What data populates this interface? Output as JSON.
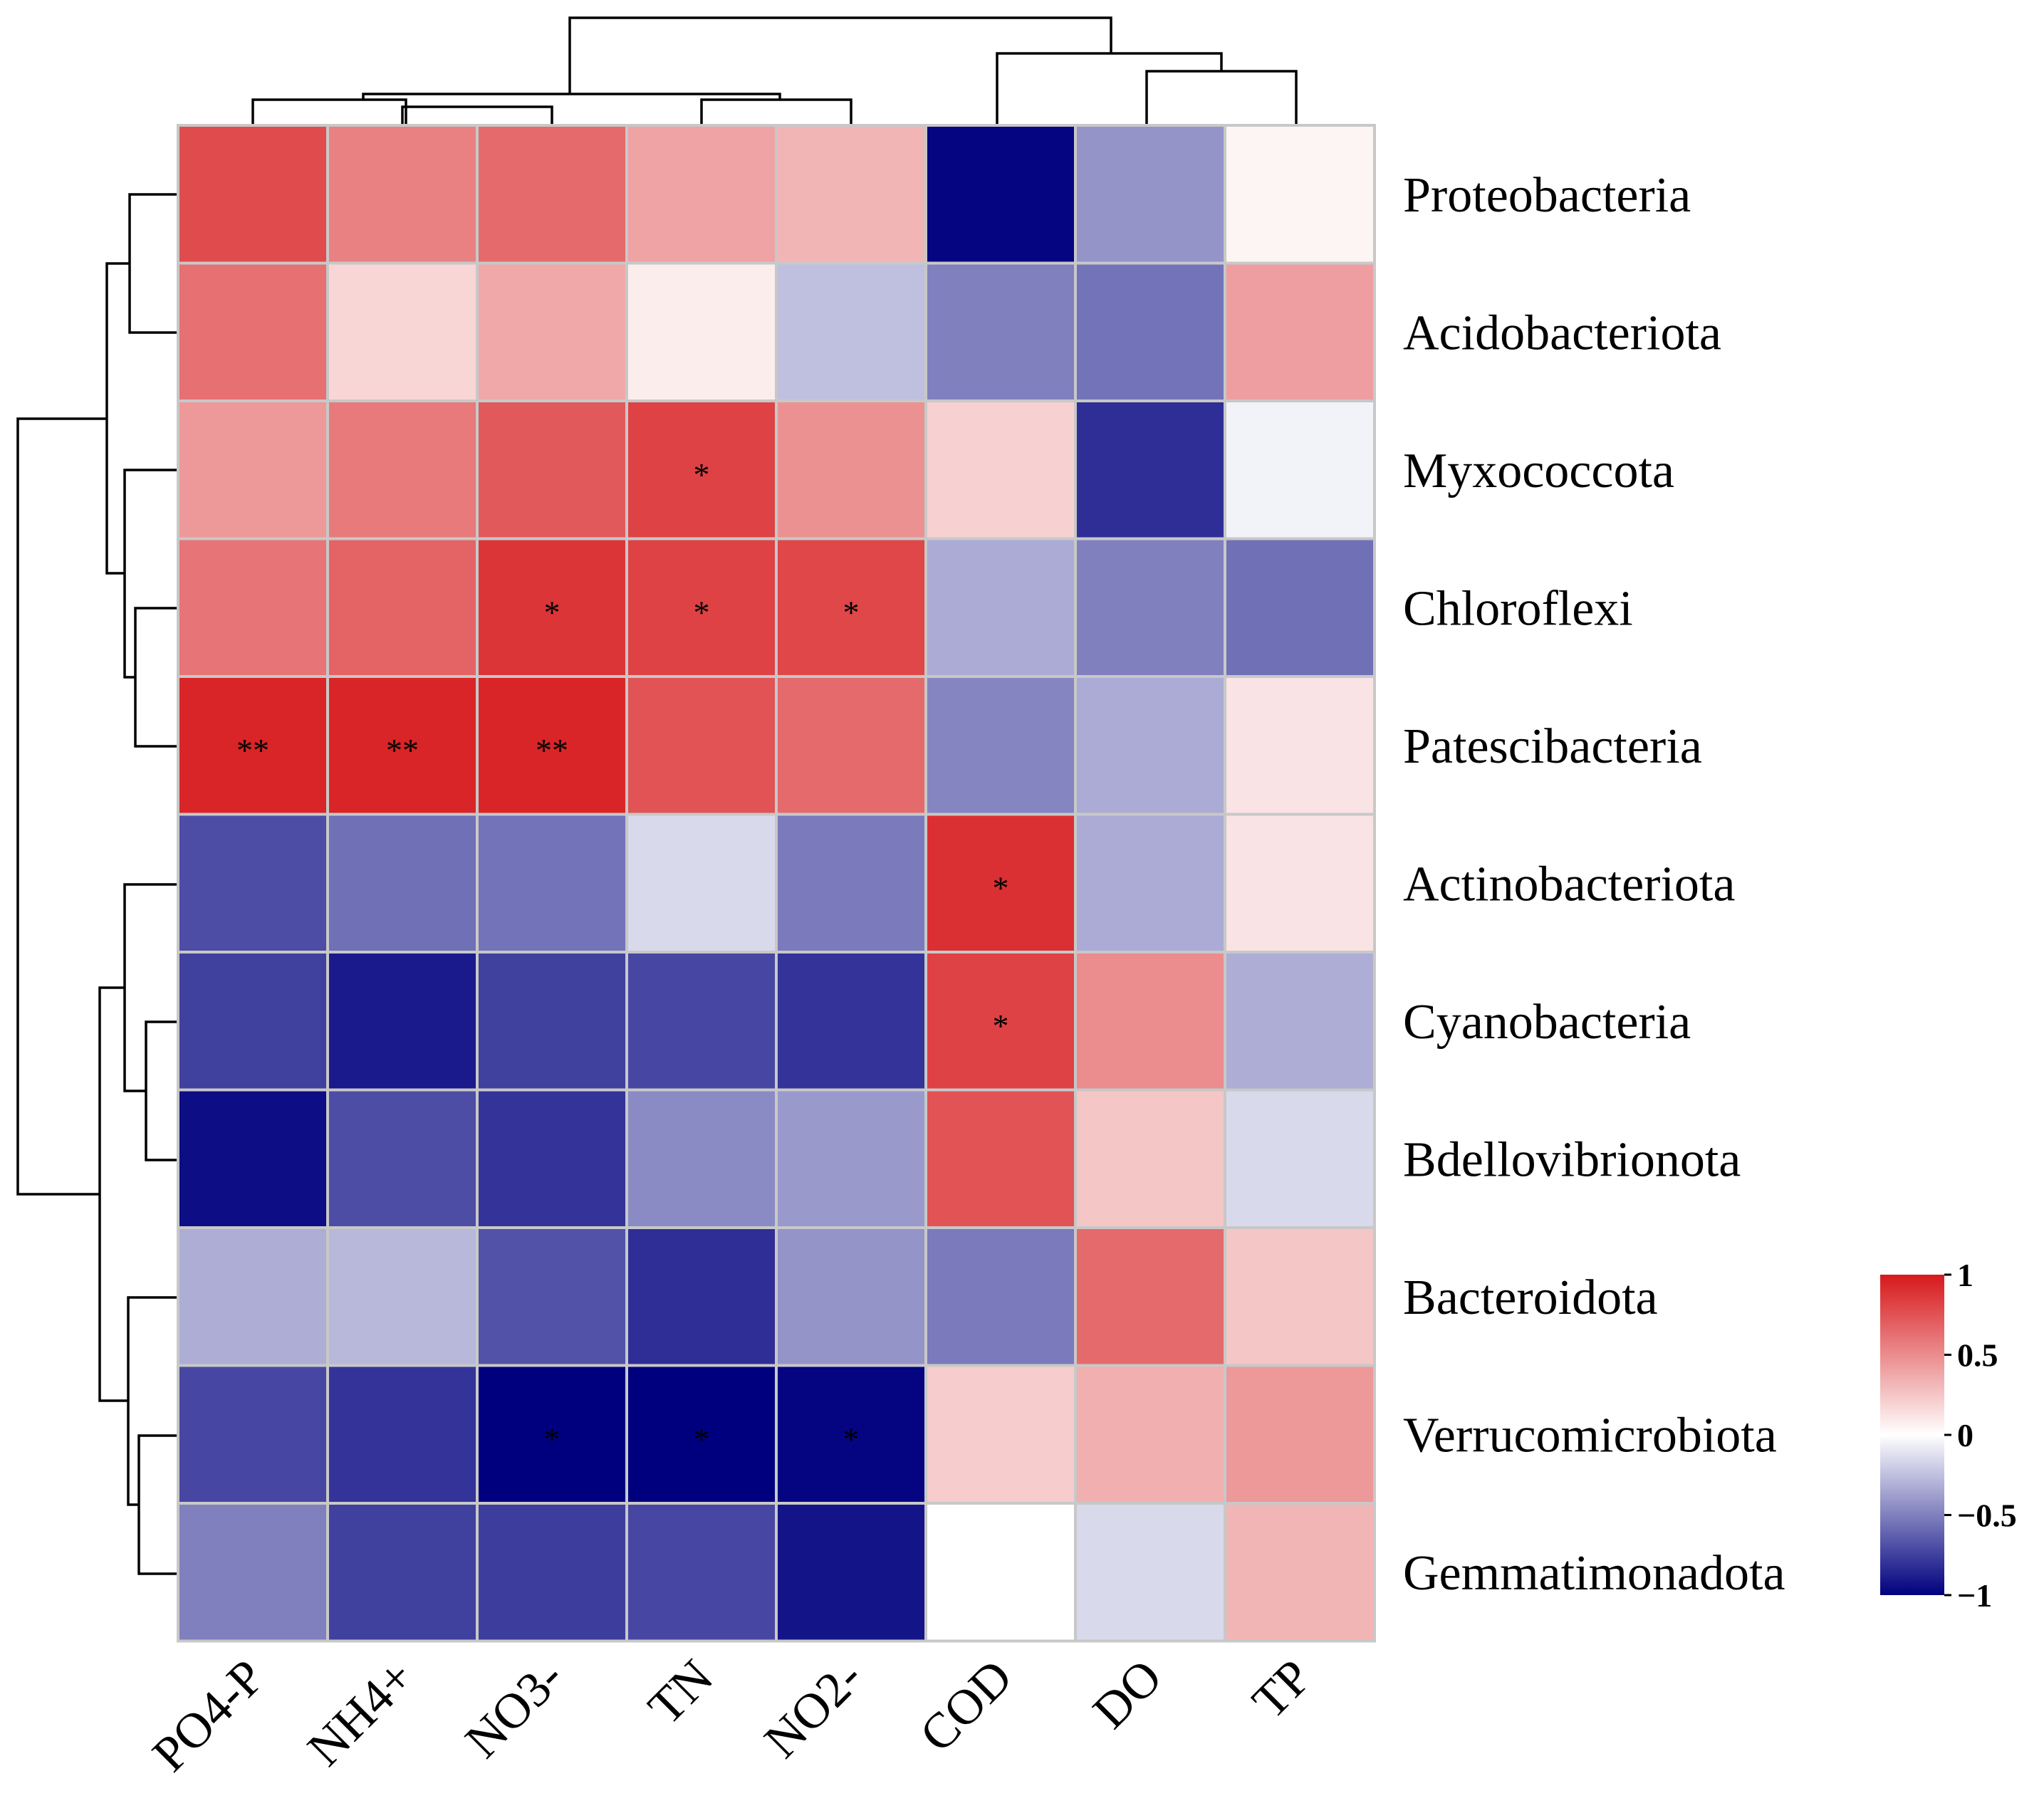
{
  "chart_data": {
    "type": "heatmap",
    "title": "",
    "x": [
      "PO4-P",
      "NH4+",
      "NO3-",
      "TN",
      "NO2-",
      "COD",
      "DO",
      "TP"
    ],
    "y": [
      "Proteobacteria",
      "Acidobacteriota",
      "Myxococcota",
      "Chloroflexi",
      "Patescibacteria",
      "Actinobacteriota",
      "Cyanobacteria",
      "Bdellovibrionota",
      "Bacteroidota",
      "Verrucomicrobiota",
      "Gemmatimonadota"
    ],
    "values": [
      [
        0.78,
        0.55,
        0.65,
        0.4,
        0.32,
        -0.98,
        -0.42,
        0.05
      ],
      [
        0.62,
        0.18,
        0.38,
        0.08,
        -0.25,
        -0.5,
        -0.55,
        0.42
      ],
      [
        0.45,
        0.58,
        0.72,
        0.82,
        0.48,
        0.2,
        -0.82,
        -0.05
      ],
      [
        0.6,
        0.68,
        0.88,
        0.82,
        0.8,
        -0.33,
        -0.5,
        -0.56
      ],
      [
        0.95,
        0.95,
        0.95,
        0.75,
        0.65,
        -0.48,
        -0.33,
        0.12
      ],
      [
        -0.7,
        -0.56,
        -0.55,
        -0.15,
        -0.52,
        0.9,
        -0.33,
        0.12
      ],
      [
        -0.75,
        -0.9,
        -0.75,
        -0.72,
        -0.8,
        0.82,
        0.5,
        -0.32
      ],
      [
        -0.95,
        -0.7,
        -0.8,
        -0.46,
        -0.4,
        0.75,
        0.25,
        -0.15
      ],
      [
        -0.32,
        -0.28,
        -0.68,
        -0.82,
        -0.42,
        -0.52,
        0.65,
        0.25
      ],
      [
        -0.72,
        -0.8,
        -1.0,
        -1.0,
        -0.98,
        0.22,
        0.35,
        0.45
      ],
      [
        -0.5,
        -0.75,
        -0.76,
        -0.72,
        -0.92,
        0.0,
        -0.15,
        0.32
      ]
    ],
    "significance": [
      [
        "",
        "",
        "",
        "",
        "",
        "",
        "",
        ""
      ],
      [
        "",
        "",
        "",
        "",
        "",
        "",
        "",
        ""
      ],
      [
        "",
        "",
        "",
        "*",
        "",
        "",
        "",
        ""
      ],
      [
        "",
        "",
        "*",
        "*",
        "*",
        "",
        "",
        ""
      ],
      [
        "**",
        "**",
        "**",
        "",
        "",
        "",
        "",
        ""
      ],
      [
        "",
        "",
        "",
        "",
        "",
        "*",
        "",
        ""
      ],
      [
        "",
        "",
        "",
        "",
        "",
        "*",
        "",
        ""
      ],
      [
        "",
        "",
        "",
        "",
        "",
        "",
        "",
        ""
      ],
      [
        "",
        "",
        "",
        "",
        "",
        "",
        "",
        ""
      ],
      [
        "",
        "",
        "*",
        "*",
        "*",
        "",
        "",
        ""
      ],
      [
        "",
        "",
        "",
        "",
        "",
        "",
        "",
        ""
      ]
    ],
    "colorbar": {
      "range": [
        -1,
        1
      ],
      "tick_values": [
        1,
        0.5,
        0,
        -0.5,
        -1
      ],
      "tick_labels": [
        "1",
        "0.5",
        "0",
        "−0.5",
        "−1"
      ],
      "colors": {
        "low": "#00007f",
        "mid": "#ffffff",
        "high": "#d7191c"
      }
    },
    "column_dendrogram": true,
    "row_dendrogram": true,
    "legend": "right"
  }
}
